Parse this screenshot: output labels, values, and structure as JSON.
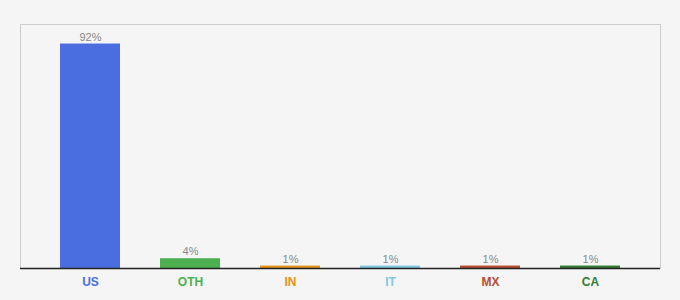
{
  "chart_data": {
    "type": "bar",
    "categories": [
      "US",
      "OTH",
      "IN",
      "IT",
      "MX",
      "CA"
    ],
    "values": [
      92,
      4,
      1,
      1,
      1,
      1
    ],
    "value_labels": [
      "92%",
      "4%",
      "1%",
      "1%",
      "1%",
      "1%"
    ],
    "colors": [
      "#4a6ee0",
      "#4caf50",
      "#e69520",
      "#7ec8e3",
      "#b84c30",
      "#2e7d32"
    ],
    "ylim": [
      0,
      100
    ],
    "data_labels": true,
    "tick_labels": "x",
    "grid": false
  }
}
